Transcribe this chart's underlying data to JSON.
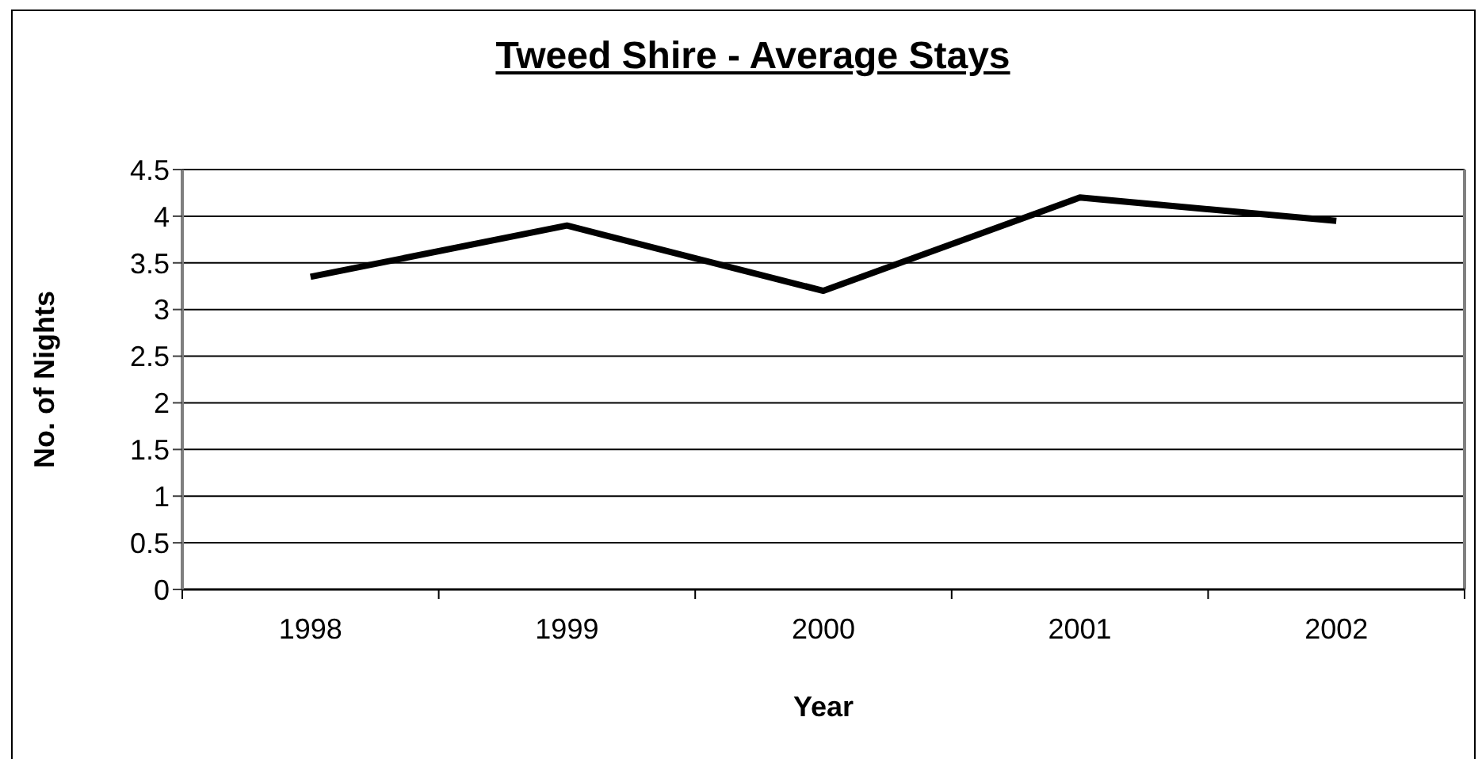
{
  "chart_data": {
    "type": "line",
    "title": "Tweed Shire - Average Stays",
    "xlabel": "Year",
    "ylabel": "No. of Nights",
    "categories": [
      "1998",
      "1999",
      "2000",
      "2001",
      "2002"
    ],
    "series": [
      {
        "color": "#000000",
        "values": [
          3.35,
          3.9,
          3.2,
          4.2,
          3.95
        ]
      }
    ],
    "ylim": [
      0,
      4.5
    ],
    "yticks": [
      0,
      0.5,
      1,
      1.5,
      2,
      2.5,
      3,
      3.5,
      4,
      4.5
    ],
    "grid": "y",
    "marker": "none",
    "line_style": "solid"
  }
}
